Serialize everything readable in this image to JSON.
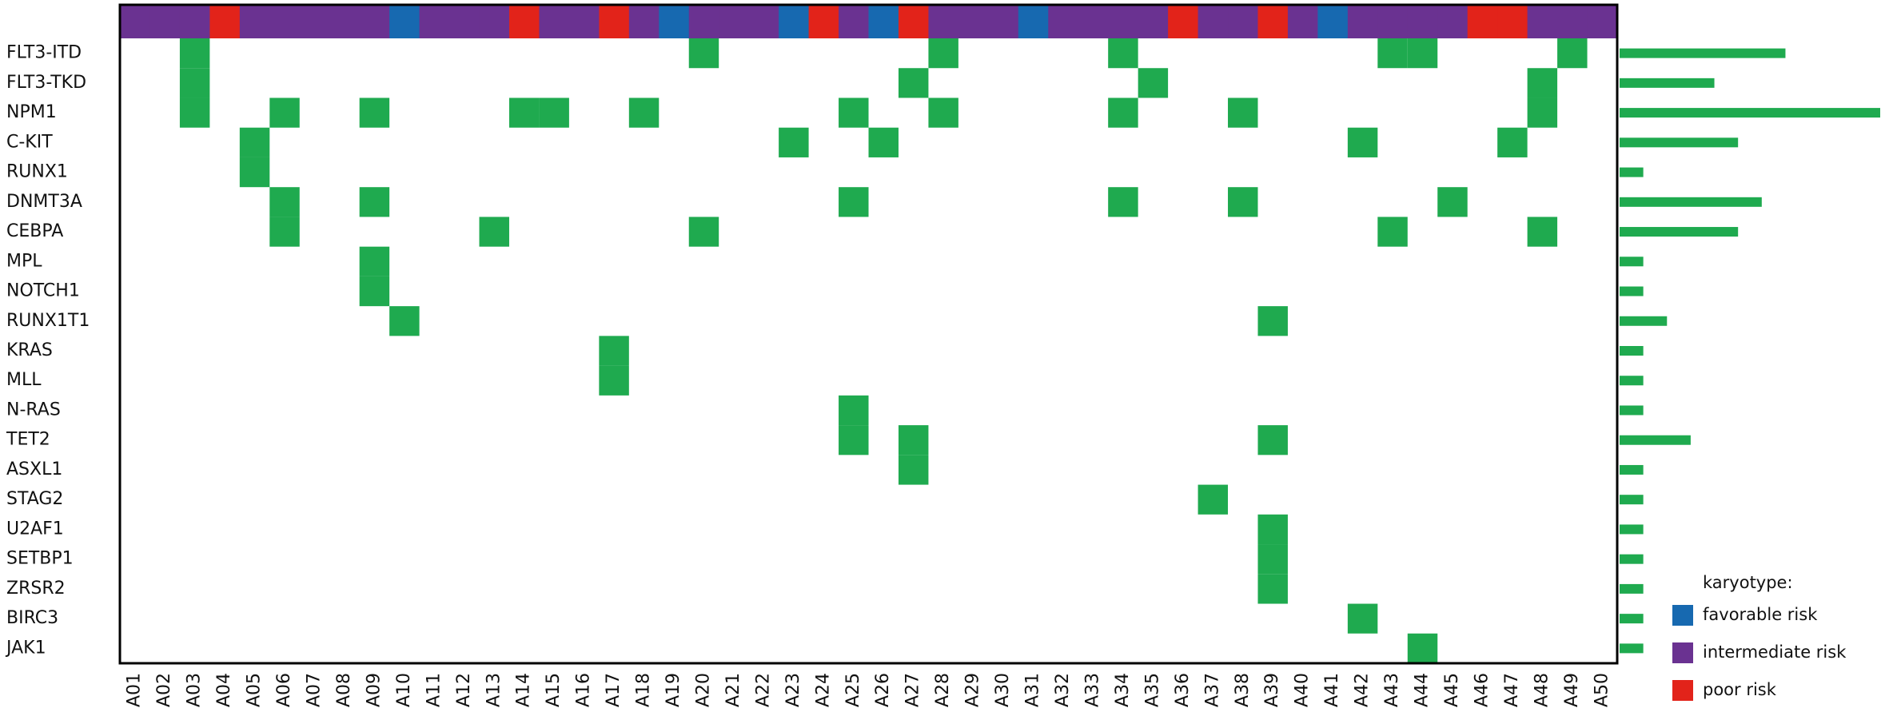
{
  "chart_data": {
    "type": "oncoprint",
    "genes": [
      "FLT3-ITD",
      "FLT3-TKD",
      "NPM1",
      "C-KIT",
      "RUNX1",
      "DNMT3A",
      "CEBPA",
      "MPL",
      "NOTCH1",
      "RUNX1T1",
      "KRAS",
      "MLL",
      "N-RAS",
      "TET2",
      "ASXL1",
      "STAG2",
      "U2AF1",
      "SETBP1",
      "ZRSR2",
      "BIRC3",
      "JAK1"
    ],
    "samples": [
      "A01",
      "A02",
      "A03",
      "A04",
      "A05",
      "A06",
      "A07",
      "A08",
      "A09",
      "A10",
      "A11",
      "A12",
      "A13",
      "A14",
      "A15",
      "A16",
      "A17",
      "A18",
      "A19",
      "A20",
      "A21",
      "A22",
      "A23",
      "A24",
      "A25",
      "A26",
      "A27",
      "A28",
      "A29",
      "A30",
      "A31",
      "A32",
      "A33",
      "A34",
      "A35",
      "A36",
      "A37",
      "A38",
      "A39",
      "A40",
      "A41",
      "A42",
      "A43",
      "A44",
      "A45",
      "A46",
      "A47",
      "A48",
      "A49",
      "A50"
    ],
    "karyotype": [
      "intermediate risk",
      "intermediate risk",
      "intermediate risk",
      "poor risk",
      "intermediate risk",
      "intermediate risk",
      "intermediate risk",
      "intermediate risk",
      "intermediate risk",
      "favorable risk",
      "intermediate risk",
      "intermediate risk",
      "intermediate risk",
      "poor risk",
      "intermediate risk",
      "intermediate risk",
      "poor risk",
      "intermediate risk",
      "favorable risk",
      "intermediate risk",
      "intermediate risk",
      "intermediate risk",
      "favorable risk",
      "poor risk",
      "intermediate risk",
      "favorable risk",
      "poor risk",
      "intermediate risk",
      "intermediate risk",
      "intermediate risk",
      "favorable risk",
      "intermediate risk",
      "intermediate risk",
      "intermediate risk",
      "intermediate risk",
      "poor risk",
      "intermediate risk",
      "intermediate risk",
      "poor risk",
      "intermediate risk",
      "favorable risk",
      "intermediate risk",
      "intermediate risk",
      "intermediate risk",
      "intermediate risk",
      "poor risk",
      "poor risk",
      "intermediate risk",
      "intermediate risk",
      "intermediate risk"
    ],
    "mutation_color": "#1faa4f",
    "matrix": [
      [
        0,
        0,
        1,
        0,
        0,
        0,
        0,
        0,
        0,
        0,
        0,
        0,
        0,
        0,
        0,
        0,
        0,
        0,
        0,
        1,
        0,
        0,
        0,
        0,
        0,
        0,
        0,
        1,
        0,
        0,
        0,
        0,
        0,
        1,
        0,
        0,
        0,
        0,
        0,
        0,
        0,
        0,
        1,
        1,
        0,
        0,
        0,
        0,
        1,
        0
      ],
      [
        0,
        0,
        1,
        0,
        0,
        0,
        0,
        0,
        0,
        0,
        0,
        0,
        0,
        0,
        0,
        0,
        0,
        0,
        0,
        0,
        0,
        0,
        0,
        0,
        0,
        0,
        1,
        0,
        0,
        0,
        0,
        0,
        0,
        0,
        1,
        0,
        0,
        0,
        0,
        0,
        0,
        0,
        0,
        0,
        0,
        0,
        0,
        1,
        0,
        0
      ],
      [
        0,
        0,
        1,
        0,
        0,
        1,
        0,
        0,
        1,
        0,
        0,
        0,
        0,
        1,
        1,
        0,
        0,
        1,
        0,
        0,
        0,
        0,
        0,
        0,
        1,
        0,
        0,
        1,
        0,
        0,
        0,
        0,
        0,
        1,
        0,
        0,
        0,
        1,
        0,
        0,
        0,
        0,
        0,
        0,
        0,
        0,
        0,
        1,
        0,
        0
      ],
      [
        0,
        0,
        0,
        0,
        1,
        0,
        0,
        0,
        0,
        0,
        0,
        0,
        0,
        0,
        0,
        0,
        0,
        0,
        0,
        0,
        0,
        0,
        1,
        0,
        0,
        1,
        0,
        0,
        0,
        0,
        0,
        0,
        0,
        0,
        0,
        0,
        0,
        0,
        0,
        0,
        0,
        1,
        0,
        0,
        0,
        0,
        1,
        0,
        0,
        0
      ],
      [
        0,
        0,
        0,
        0,
        1,
        0,
        0,
        0,
        0,
        0,
        0,
        0,
        0,
        0,
        0,
        0,
        0,
        0,
        0,
        0,
        0,
        0,
        0,
        0,
        0,
        0,
        0,
        0,
        0,
        0,
        0,
        0,
        0,
        0,
        0,
        0,
        0,
        0,
        0,
        0,
        0,
        0,
        0,
        0,
        0,
        0,
        0,
        0,
        0,
        0
      ],
      [
        0,
        0,
        0,
        0,
        0,
        1,
        0,
        0,
        1,
        0,
        0,
        0,
        0,
        0,
        0,
        0,
        0,
        0,
        0,
        0,
        0,
        0,
        0,
        0,
        1,
        0,
        0,
        0,
        0,
        0,
        0,
        0,
        0,
        1,
        0,
        0,
        0,
        1,
        0,
        0,
        0,
        0,
        0,
        0,
        1,
        0,
        0,
        0,
        0,
        0
      ],
      [
        0,
        0,
        0,
        0,
        0,
        1,
        0,
        0,
        0,
        0,
        0,
        0,
        1,
        0,
        0,
        0,
        0,
        0,
        0,
        1,
        0,
        0,
        0,
        0,
        0,
        0,
        0,
        0,
        0,
        0,
        0,
        0,
        0,
        0,
        0,
        0,
        0,
        0,
        0,
        0,
        0,
        0,
        1,
        0,
        0,
        0,
        0,
        1,
        0,
        0
      ],
      [
        0,
        0,
        0,
        0,
        0,
        0,
        0,
        0,
        1,
        0,
        0,
        0,
        0,
        0,
        0,
        0,
        0,
        0,
        0,
        0,
        0,
        0,
        0,
        0,
        0,
        0,
        0,
        0,
        0,
        0,
        0,
        0,
        0,
        0,
        0,
        0,
        0,
        0,
        0,
        0,
        0,
        0,
        0,
        0,
        0,
        0,
        0,
        0,
        0,
        0
      ],
      [
        0,
        0,
        0,
        0,
        0,
        0,
        0,
        0,
        1,
        0,
        0,
        0,
        0,
        0,
        0,
        0,
        0,
        0,
        0,
        0,
        0,
        0,
        0,
        0,
        0,
        0,
        0,
        0,
        0,
        0,
        0,
        0,
        0,
        0,
        0,
        0,
        0,
        0,
        0,
        0,
        0,
        0,
        0,
        0,
        0,
        0,
        0,
        0,
        0,
        0
      ],
      [
        0,
        0,
        0,
        0,
        0,
        0,
        0,
        0,
        0,
        1,
        0,
        0,
        0,
        0,
        0,
        0,
        0,
        0,
        0,
        0,
        0,
        0,
        0,
        0,
        0,
        0,
        0,
        0,
        0,
        0,
        0,
        0,
        0,
        0,
        0,
        0,
        0,
        0,
        1,
        0,
        0,
        0,
        0,
        0,
        0,
        0,
        0,
        0,
        0,
        0
      ],
      [
        0,
        0,
        0,
        0,
        0,
        0,
        0,
        0,
        0,
        0,
        0,
        0,
        0,
        0,
        0,
        0,
        1,
        0,
        0,
        0,
        0,
        0,
        0,
        0,
        0,
        0,
        0,
        0,
        0,
        0,
        0,
        0,
        0,
        0,
        0,
        0,
        0,
        0,
        0,
        0,
        0,
        0,
        0,
        0,
        0,
        0,
        0,
        0,
        0,
        0
      ],
      [
        0,
        0,
        0,
        0,
        0,
        0,
        0,
        0,
        0,
        0,
        0,
        0,
        0,
        0,
        0,
        0,
        1,
        0,
        0,
        0,
        0,
        0,
        0,
        0,
        0,
        0,
        0,
        0,
        0,
        0,
        0,
        0,
        0,
        0,
        0,
        0,
        0,
        0,
        0,
        0,
        0,
        0,
        0,
        0,
        0,
        0,
        0,
        0,
        0,
        0
      ],
      [
        0,
        0,
        0,
        0,
        0,
        0,
        0,
        0,
        0,
        0,
        0,
        0,
        0,
        0,
        0,
        0,
        0,
        0,
        0,
        0,
        0,
        0,
        0,
        0,
        1,
        0,
        0,
        0,
        0,
        0,
        0,
        0,
        0,
        0,
        0,
        0,
        0,
        0,
        0,
        0,
        0,
        0,
        0,
        0,
        0,
        0,
        0,
        0,
        0,
        0
      ],
      [
        0,
        0,
        0,
        0,
        0,
        0,
        0,
        0,
        0,
        0,
        0,
        0,
        0,
        0,
        0,
        0,
        0,
        0,
        0,
        0,
        0,
        0,
        0,
        0,
        1,
        0,
        1,
        0,
        0,
        0,
        0,
        0,
        0,
        0,
        0,
        0,
        0,
        0,
        1,
        0,
        0,
        0,
        0,
        0,
        0,
        0,
        0,
        0,
        0,
        0
      ],
      [
        0,
        0,
        0,
        0,
        0,
        0,
        0,
        0,
        0,
        0,
        0,
        0,
        0,
        0,
        0,
        0,
        0,
        0,
        0,
        0,
        0,
        0,
        0,
        0,
        0,
        0,
        1,
        0,
        0,
        0,
        0,
        0,
        0,
        0,
        0,
        0,
        0,
        0,
        0,
        0,
        0,
        0,
        0,
        0,
        0,
        0,
        0,
        0,
        0,
        0
      ],
      [
        0,
        0,
        0,
        0,
        0,
        0,
        0,
        0,
        0,
        0,
        0,
        0,
        0,
        0,
        0,
        0,
        0,
        0,
        0,
        0,
        0,
        0,
        0,
        0,
        0,
        0,
        0,
        0,
        0,
        0,
        0,
        0,
        0,
        0,
        0,
        0,
        1,
        0,
        0,
        0,
        0,
        0,
        0,
        0,
        0,
        0,
        0,
        0,
        0,
        0
      ],
      [
        0,
        0,
        0,
        0,
        0,
        0,
        0,
        0,
        0,
        0,
        0,
        0,
        0,
        0,
        0,
        0,
        0,
        0,
        0,
        0,
        0,
        0,
        0,
        0,
        0,
        0,
        0,
        0,
        0,
        0,
        0,
        0,
        0,
        0,
        0,
        0,
        0,
        0,
        1,
        0,
        0,
        0,
        0,
        0,
        0,
        0,
        0,
        0,
        0,
        0
      ],
      [
        0,
        0,
        0,
        0,
        0,
        0,
        0,
        0,
        0,
        0,
        0,
        0,
        0,
        0,
        0,
        0,
        0,
        0,
        0,
        0,
        0,
        0,
        0,
        0,
        0,
        0,
        0,
        0,
        0,
        0,
        0,
        0,
        0,
        0,
        0,
        0,
        0,
        0,
        1,
        0,
        0,
        0,
        0,
        0,
        0,
        0,
        0,
        0,
        0,
        0
      ],
      [
        0,
        0,
        0,
        0,
        0,
        0,
        0,
        0,
        0,
        0,
        0,
        0,
        0,
        0,
        0,
        0,
        0,
        0,
        0,
        0,
        0,
        0,
        0,
        0,
        0,
        0,
        0,
        0,
        0,
        0,
        0,
        0,
        0,
        0,
        0,
        0,
        0,
        0,
        1,
        0,
        0,
        0,
        0,
        0,
        0,
        0,
        0,
        0,
        0,
        0
      ],
      [
        0,
        0,
        0,
        0,
        0,
        0,
        0,
        0,
        0,
        0,
        0,
        0,
        0,
        0,
        0,
        0,
        0,
        0,
        0,
        0,
        0,
        0,
        0,
        0,
        0,
        0,
        0,
        0,
        0,
        0,
        0,
        0,
        0,
        0,
        0,
        0,
        0,
        0,
        0,
        0,
        0,
        1,
        0,
        0,
        0,
        0,
        0,
        0,
        0,
        0
      ],
      [
        0,
        0,
        0,
        0,
        0,
        0,
        0,
        0,
        0,
        0,
        0,
        0,
        0,
        0,
        0,
        0,
        0,
        0,
        0,
        0,
        0,
        0,
        0,
        0,
        0,
        0,
        0,
        0,
        0,
        0,
        0,
        0,
        0,
        0,
        0,
        0,
        0,
        0,
        0,
        0,
        0,
        0,
        0,
        1,
        0,
        0,
        0,
        0,
        0,
        0
      ]
    ],
    "counts": [
      7,
      4,
      11,
      5,
      1,
      6,
      5,
      1,
      1,
      2,
      1,
      1,
      1,
      3,
      1,
      1,
      1,
      1,
      1,
      1,
      1
    ],
    "legend": {
      "title": "karyotype:",
      "items": [
        {
          "name": "favorable risk",
          "color": "#1769b0"
        },
        {
          "name": "intermediate risk",
          "color": "#6a3291"
        },
        {
          "name": "poor risk",
          "color": "#e2231a"
        }
      ]
    }
  }
}
